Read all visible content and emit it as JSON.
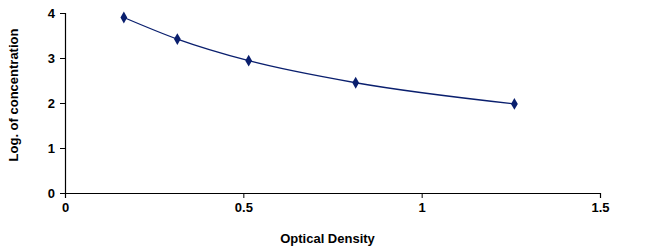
{
  "chart_data": {
    "type": "line",
    "x_label": "Optical Density",
    "y_label": "Log. of concentration",
    "x": [
      0.165,
      0.315,
      0.515,
      0.815,
      1.26
    ],
    "values": [
      3.9,
      3.42,
      2.94,
      2.45,
      1.98
    ],
    "color": "#0a1f6e",
    "marker": "diamond",
    "line_style": "solid",
    "xlim": [
      0,
      1.5
    ],
    "xticks": [
      0,
      0.5,
      1,
      1.5
    ],
    "ylim": [
      0,
      4
    ],
    "yticks": [
      0,
      1,
      2,
      3,
      4
    ],
    "grid": false
  }
}
